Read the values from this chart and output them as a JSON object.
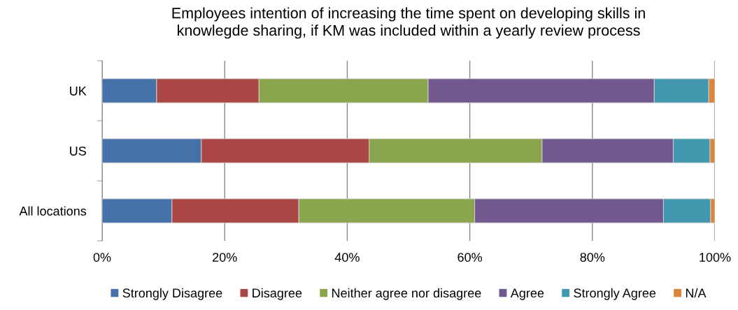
{
  "chart_data": {
    "type": "bar",
    "orientation": "horizontal",
    "stacked": true,
    "title": "Employees intention of increasing the time spent on developing skills in\nknowlegde sharing, if KM was included within a yearly review process",
    "categories": [
      "UK",
      "US",
      "All locations"
    ],
    "series": [
      {
        "name": "Strongly Disagree",
        "color": "#4572a7",
        "values": [
          8.9,
          16.2,
          11.4
        ]
      },
      {
        "name": "Disagree",
        "color": "#aa4643",
        "values": [
          16.7,
          27.4,
          20.7
        ]
      },
      {
        "name": "Neither agree nor disagree",
        "color": "#89a54e",
        "values": [
          27.6,
          28.2,
          28.7
        ]
      },
      {
        "name": "Agree",
        "color": "#71588f",
        "values": [
          36.9,
          21.4,
          30.8
        ]
      },
      {
        "name": "Strongly Agree",
        "color": "#4198af",
        "values": [
          8.9,
          6.0,
          7.7
        ]
      },
      {
        "name": "N/A",
        "color": "#db843d",
        "values": [
          1.0,
          0.8,
          0.7
        ]
      }
    ],
    "xlim": [
      0,
      100
    ],
    "xticks": [
      {
        "value": 0,
        "label": "0%"
      },
      {
        "value": 20,
        "label": "20%"
      },
      {
        "value": 40,
        "label": "40%"
      },
      {
        "value": 60,
        "label": "60%"
      },
      {
        "value": 80,
        "label": "80%"
      },
      {
        "value": 100,
        "label": "100%"
      }
    ],
    "grid": "x",
    "legend": "bottom"
  }
}
